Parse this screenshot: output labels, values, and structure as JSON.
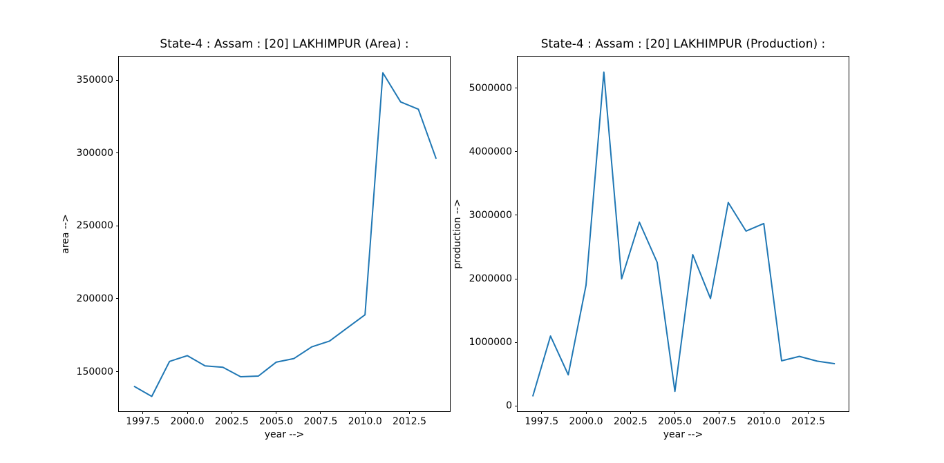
{
  "figure": {
    "background": "#ffffff",
    "spine_color": "#000000",
    "text_color": "#000000"
  },
  "chart_data": [
    {
      "name": "area",
      "type": "line",
      "title": "State-4 : Assam : [20] LAKHIMPUR (Area) :",
      "xlabel": "year -->",
      "ylabel": "area -->",
      "x": [
        1997,
        1998,
        1999,
        2000,
        2001,
        2002,
        2003,
        2004,
        2005,
        2006,
        2007,
        2008,
        2009,
        2010,
        2011,
        2012,
        2013,
        2014
      ],
      "y": [
        140000,
        133000,
        157000,
        161000,
        154000,
        153000,
        146500,
        147000,
        156500,
        159000,
        167000,
        171000,
        180000,
        189000,
        355000,
        335000,
        330000,
        296000
      ],
      "xlim": [
        1996.15,
        2014.85
      ],
      "ylim": [
        121900,
        366100
      ],
      "xticks": [
        "1997.5",
        "2000.0",
        "2002.5",
        "2005.0",
        "2007.5",
        "2010.0",
        "2012.5"
      ],
      "yticks": [
        "150000",
        "200000",
        "250000",
        "300000",
        "350000"
      ],
      "line_color": "#1f77b4",
      "grid": false,
      "legend": "none"
    },
    {
      "name": "production",
      "type": "line",
      "title": "State-4 : Assam : [20] LAKHIMPUR (Production) :",
      "xlabel": "year -->",
      "ylabel": "production -->",
      "x": [
        1997,
        1998,
        1999,
        2000,
        2001,
        2002,
        2003,
        2004,
        2005,
        2006,
        2007,
        2008,
        2009,
        2010,
        2011,
        2012,
        2013,
        2014
      ],
      "y": [
        150000,
        1100000,
        490000,
        1900000,
        5250000,
        2000000,
        2890000,
        2260000,
        230000,
        2380000,
        1690000,
        3200000,
        2750000,
        2870000,
        710000,
        780000,
        705000,
        665000
      ],
      "xlim": [
        1996.15,
        2014.85
      ],
      "ylim": [
        -104500,
        5494500
      ],
      "xticks": [
        "1997.5",
        "2000.0",
        "2002.5",
        "2005.0",
        "2007.5",
        "2010.0",
        "2012.5"
      ],
      "yticks": [
        "0",
        "1000000",
        "2000000",
        "3000000",
        "4000000",
        "5000000"
      ],
      "line_color": "#1f77b4",
      "grid": false,
      "legend": "none"
    }
  ]
}
